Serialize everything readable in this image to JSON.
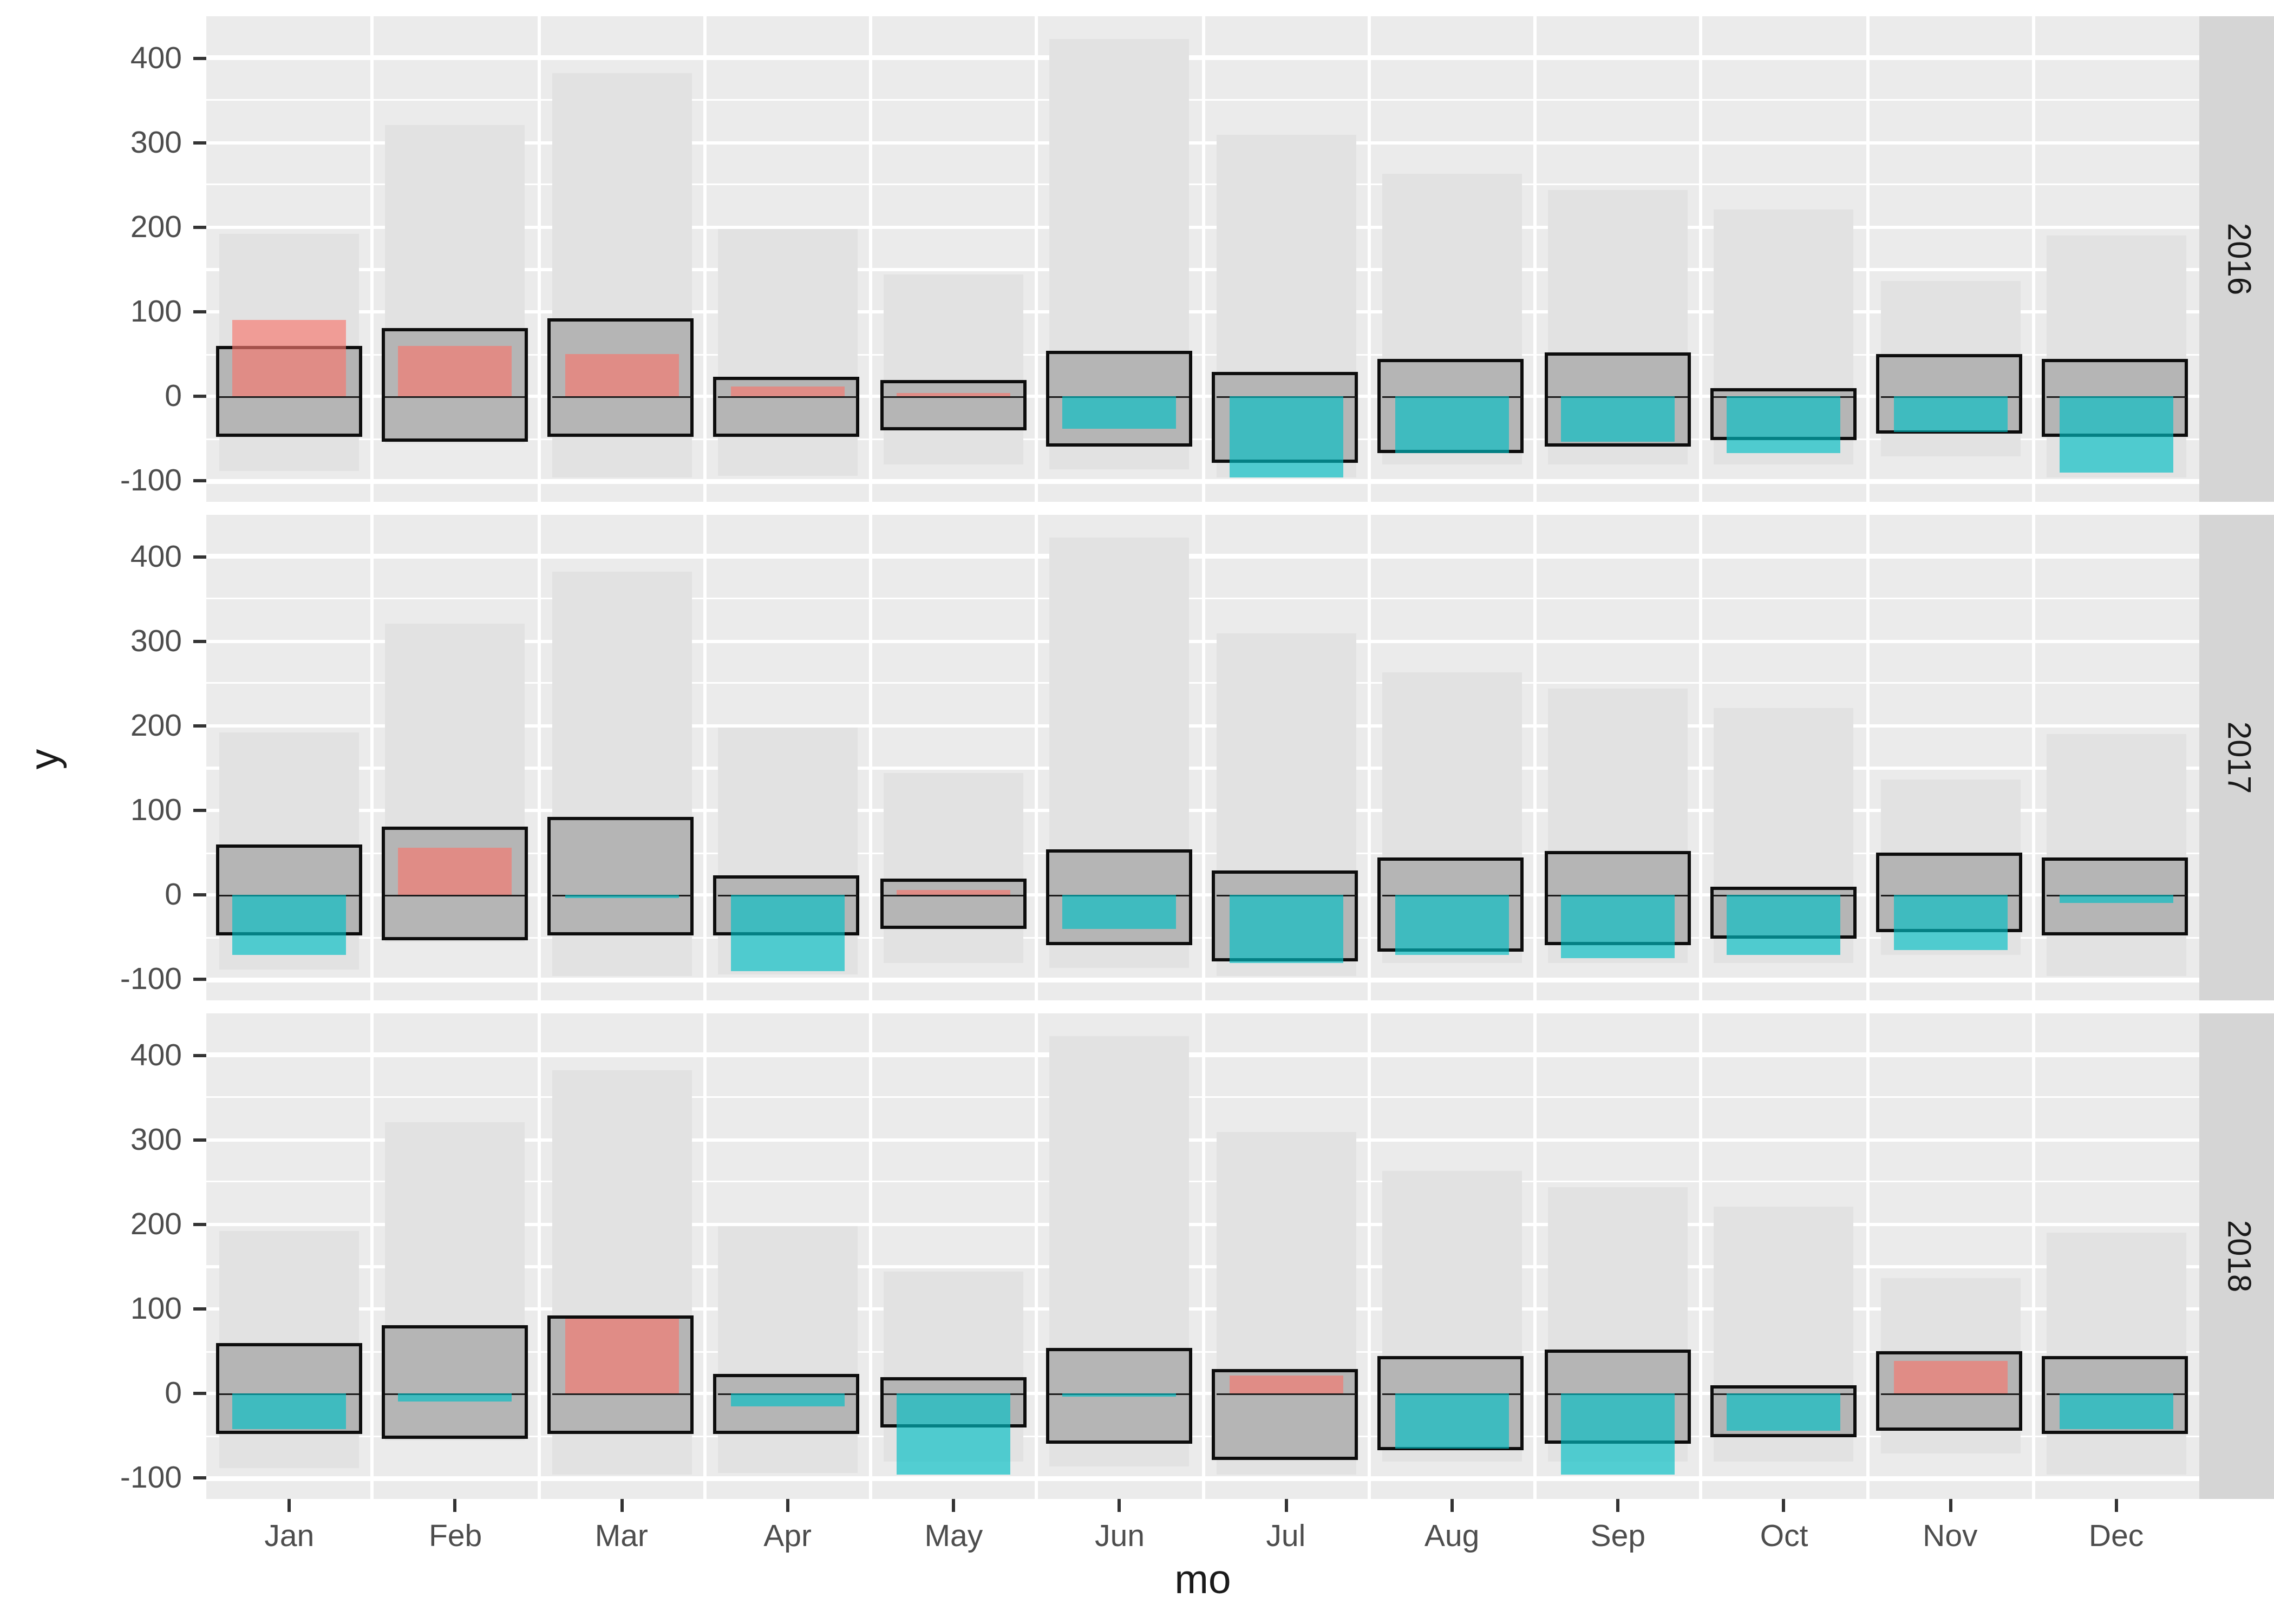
{
  "chart_data": {
    "type": "bar",
    "title": "",
    "xlabel": "mo",
    "ylabel": "y",
    "facet_variable_values": [
      "2016",
      "2017",
      "2018"
    ],
    "facets": [
      "2016",
      "2017",
      "2018"
    ],
    "categories": [
      "Jan",
      "Feb",
      "Mar",
      "Apr",
      "May",
      "Jun",
      "Jul",
      "Aug",
      "Sep",
      "Oct",
      "Nov",
      "Dec"
    ],
    "ylim": [
      -124,
      449
    ],
    "yticks": [
      400,
      300,
      200,
      100,
      0,
      -100
    ],
    "ytick_labels": [
      "400",
      "300",
      "200",
      "100",
      "0",
      "-100"
    ],
    "minor_gridlines": [
      450,
      350,
      250,
      150,
      50,
      -50
    ],
    "grid": "on",
    "legend_position": "none",
    "record_range": {
      "description": "wide light-gray background bars, identical in every facet",
      "low": [
        -88,
        -55,
        -95,
        -93,
        -80,
        -85,
        -95,
        -80,
        -80,
        -80,
        -70,
        -95
      ],
      "high": [
        193,
        320,
        381,
        197,
        145,
        423,
        310,
        264,
        243,
        220,
        137,
        190
      ]
    },
    "normal_range": {
      "description": "black-outlined gray crossbar boxes with middle line at 0, identical in every facet",
      "low": [
        -44,
        -50,
        -44,
        -45,
        -36,
        -56,
        -76,
        -64,
        -56,
        -48,
        -40,
        -45
      ],
      "high": [
        56,
        76,
        88,
        18,
        15,
        50,
        25,
        40,
        48,
        6,
        45,
        40
      ]
    },
    "series": [
      {
        "name": "2016",
        "values": [
          90,
          60,
          50,
          12,
          5,
          -38,
          -95,
          -67,
          -54,
          -66,
          -42,
          -90
        ]
      },
      {
        "name": "2017",
        "values": [
          -70,
          57,
          -3,
          -90,
          6,
          -40,
          -80,
          -70,
          -75,
          -70,
          -65,
          -10
        ]
      },
      {
        "name": "2018",
        "values": [
          -42,
          -10,
          88,
          -15,
          -95,
          -3,
          22,
          -65,
          -95,
          -44,
          38,
          -42
        ]
      }
    ],
    "colors": {
      "positive_bar": "#F8766D",
      "negative_bar": "#00BFC4",
      "bar_opacity": 0.65,
      "record_range_fill": "#E2E2E2",
      "normal_range_fill": "#B5B5B5",
      "normal_range_border": "#0D0D0D",
      "panel_background": "#EBEBEB",
      "strip_background": "#D5D5D5",
      "gridline": "#FFFFFF",
      "axis_text": "#4D4D4D",
      "title_text": "#1A1A1A"
    }
  }
}
